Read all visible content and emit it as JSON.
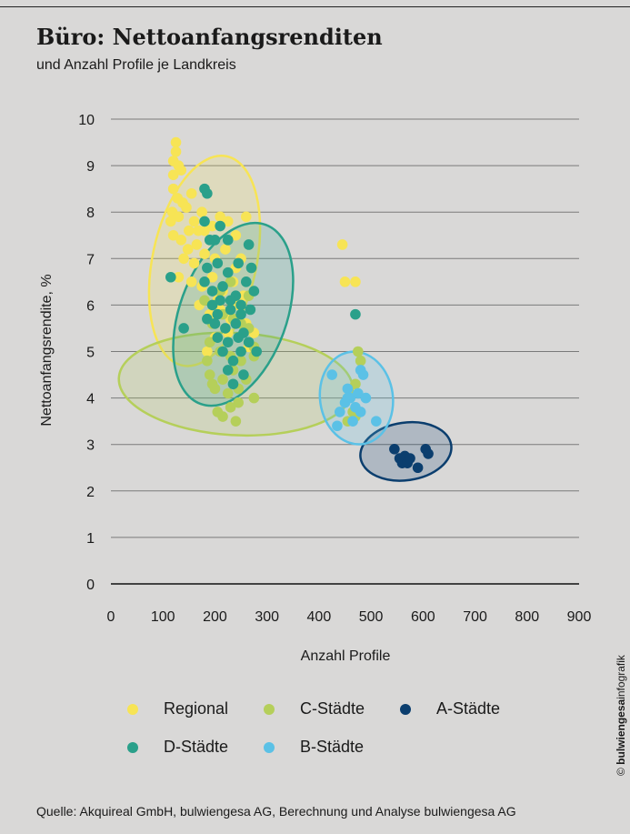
{
  "header": {
    "title": "Büro: Nettoanfangsrenditen",
    "subtitle": "und Anzahl Profile je Landkreis"
  },
  "footer": {
    "source": "Quelle: Akquireal GmbH, bulwiengesa AG, Berechnung und Analyse bulwiengesa AG",
    "credit_prefix": "© ",
    "credit_brand": "bulwiengesa",
    "credit_suffix": "infografik"
  },
  "chart_data": {
    "type": "scatter",
    "xlabel": "Anzahl Profile",
    "ylabel": "Nettoanfangsrendite, %",
    "xlim": [
      0,
      900
    ],
    "ylim": [
      0,
      10
    ],
    "xticks": [
      "0",
      "100",
      "200",
      "300",
      "400",
      "500",
      "600",
      "700",
      "800",
      "900"
    ],
    "yticks": [
      "0",
      "1",
      "2",
      "3",
      "4",
      "5",
      "6",
      "7",
      "8",
      "9",
      "10"
    ],
    "grid": true,
    "legend_placement": "bottom",
    "series": [
      {
        "name": "Regional",
        "color": "#f7e455",
        "ellipse": {
          "cx": 180,
          "cy": 6.95,
          "rx": 100,
          "ry": 2.3,
          "angle": 12
        },
        "points": [
          [
            125,
            9.5
          ],
          [
            125,
            9.3
          ],
          [
            120,
            9.1
          ],
          [
            130,
            9.0
          ],
          [
            120,
            8.8
          ],
          [
            135,
            8.9
          ],
          [
            120,
            8.5
          ],
          [
            128,
            8.3
          ],
          [
            138,
            8.2
          ],
          [
            155,
            8.4
          ],
          [
            118,
            8.0
          ],
          [
            130,
            7.9
          ],
          [
            145,
            8.1
          ],
          [
            160,
            7.8
          ],
          [
            175,
            8.0
          ],
          [
            120,
            7.5
          ],
          [
            135,
            7.4
          ],
          [
            150,
            7.6
          ],
          [
            165,
            7.3
          ],
          [
            180,
            7.6
          ],
          [
            195,
            7.7
          ],
          [
            210,
            7.9
          ],
          [
            225,
            7.8
          ],
          [
            240,
            7.5
          ],
          [
            140,
            7.0
          ],
          [
            160,
            6.9
          ],
          [
            180,
            7.1
          ],
          [
            200,
            7.0
          ],
          [
            220,
            7.2
          ],
          [
            250,
            7.0
          ],
          [
            130,
            6.6
          ],
          [
            155,
            6.5
          ],
          [
            175,
            6.4
          ],
          [
            195,
            6.6
          ],
          [
            215,
            6.3
          ],
          [
            235,
            6.5
          ],
          [
            255,
            6.2
          ],
          [
            170,
            6.0
          ],
          [
            190,
            5.8
          ],
          [
            210,
            5.9
          ],
          [
            230,
            5.7
          ],
          [
            245,
            6.0
          ],
          [
            260,
            5.6
          ],
          [
            275,
            5.4
          ],
          [
            200,
            5.3
          ],
          [
            185,
            5.0
          ],
          [
            265,
            5.1
          ],
          [
            225,
            5.4
          ],
          [
            205,
            6.1
          ],
          [
            240,
            6.8
          ],
          [
            260,
            7.9
          ],
          [
            115,
            7.8
          ],
          [
            148,
            7.2
          ],
          [
            168,
            7.6
          ],
          [
            445,
            7.3
          ],
          [
            450,
            6.5
          ],
          [
            470,
            6.5
          ]
        ]
      },
      {
        "name": "C-Städte",
        "color": "#b5cf5a",
        "ellipse": {
          "cx": 240,
          "cy": 4.3,
          "rx": 225,
          "ry": 1.1,
          "angle": 3
        },
        "points": [
          [
            190,
            5.2
          ],
          [
            210,
            5.0
          ],
          [
            230,
            4.9
          ],
          [
            250,
            4.8
          ],
          [
            275,
            4.9
          ],
          [
            190,
            4.5
          ],
          [
            215,
            4.4
          ],
          [
            235,
            4.6
          ],
          [
            260,
            4.4
          ],
          [
            200,
            4.2
          ],
          [
            225,
            4.1
          ],
          [
            245,
            4.2
          ],
          [
            275,
            4.0
          ],
          [
            205,
            3.7
          ],
          [
            215,
            3.6
          ],
          [
            240,
            3.5
          ],
          [
            245,
            3.9
          ],
          [
            230,
            3.8
          ],
          [
            185,
            4.8
          ],
          [
            265,
            5.5
          ],
          [
            195,
            5.6
          ],
          [
            215,
            5.8
          ],
          [
            235,
            5.7
          ],
          [
            250,
            5.6
          ],
          [
            180,
            6.1
          ],
          [
            210,
            6.3
          ],
          [
            230,
            6.5
          ],
          [
            265,
            6.2
          ],
          [
            275,
            5.1
          ],
          [
            195,
            4.3
          ],
          [
            475,
            5.0
          ],
          [
            480,
            4.8
          ],
          [
            470,
            4.3
          ],
          [
            465,
            3.7
          ],
          [
            455,
            3.5
          ],
          [
            470,
            3.6
          ]
        ]
      },
      {
        "name": "A-Städte",
        "color": "#0b3e6e",
        "ellipse": {
          "cx": 567,
          "cy": 2.85,
          "rx": 88,
          "ry": 0.62,
          "angle": -8
        },
        "points": [
          [
            545,
            2.9
          ],
          [
            555,
            2.7
          ],
          [
            560,
            2.6
          ],
          [
            565,
            2.75
          ],
          [
            570,
            2.6
          ],
          [
            575,
            2.7
          ],
          [
            590,
            2.5
          ],
          [
            605,
            2.9
          ],
          [
            610,
            2.8
          ]
        ]
      },
      {
        "name": "D-Städte",
        "color": "#2aa08a",
        "ellipse": {
          "cx": 235,
          "cy": 5.8,
          "rx": 103,
          "ry": 2.05,
          "angle": 20
        },
        "points": [
          [
            180,
            8.5
          ],
          [
            185,
            8.4
          ],
          [
            180,
            7.8
          ],
          [
            190,
            7.4
          ],
          [
            200,
            7.4
          ],
          [
            210,
            7.7
          ],
          [
            225,
            7.4
          ],
          [
            265,
            7.3
          ],
          [
            185,
            6.8
          ],
          [
            205,
            6.9
          ],
          [
            225,
            6.7
          ],
          [
            245,
            6.9
          ],
          [
            270,
            6.8
          ],
          [
            180,
            6.5
          ],
          [
            195,
            6.3
          ],
          [
            215,
            6.4
          ],
          [
            240,
            6.2
          ],
          [
            260,
            6.5
          ],
          [
            275,
            6.3
          ],
          [
            195,
            6.0
          ],
          [
            210,
            6.1
          ],
          [
            230,
            5.9
          ],
          [
            250,
            6.0
          ],
          [
            268,
            5.9
          ],
          [
            185,
            5.7
          ],
          [
            200,
            5.6
          ],
          [
            220,
            5.5
          ],
          [
            240,
            5.6
          ],
          [
            255,
            5.4
          ],
          [
            205,
            5.3
          ],
          [
            225,
            5.2
          ],
          [
            245,
            5.3
          ],
          [
            265,
            5.2
          ],
          [
            215,
            5.0
          ],
          [
            235,
            4.8
          ],
          [
            250,
            5.0
          ],
          [
            225,
            4.6
          ],
          [
            255,
            4.5
          ],
          [
            235,
            4.3
          ],
          [
            280,
            5.0
          ],
          [
            140,
            5.5
          ],
          [
            115,
            6.6
          ],
          [
            230,
            6.1
          ],
          [
            205,
            5.8
          ],
          [
            250,
            5.8
          ],
          [
            470,
            5.8
          ]
        ]
      },
      {
        "name": "B-Städte",
        "color": "#5bc1e6",
        "ellipse": {
          "cx": 472,
          "cy": 4.0,
          "rx": 70,
          "ry": 1.0,
          "angle": -8
        },
        "points": [
          [
            425,
            4.5
          ],
          [
            440,
            3.7
          ],
          [
            435,
            3.4
          ],
          [
            455,
            4.2
          ],
          [
            460,
            4.0
          ],
          [
            465,
            3.5
          ],
          [
            470,
            3.8
          ],
          [
            475,
            4.1
          ],
          [
            480,
            4.6
          ],
          [
            485,
            4.5
          ],
          [
            490,
            4.0
          ],
          [
            510,
            3.5
          ],
          [
            455,
            4.0
          ],
          [
            450,
            3.9
          ],
          [
            480,
            3.7
          ]
        ]
      }
    ]
  }
}
